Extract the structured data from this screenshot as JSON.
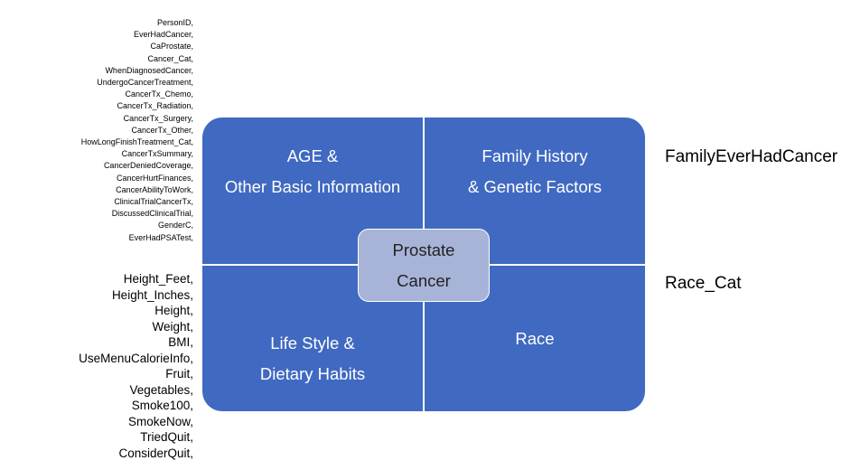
{
  "basic_variables": [
    "PersonID,",
    "EverHadCancer,",
    "CaProstate,",
    "Cancer_Cat,",
    "WhenDiagnosedCancer,",
    "UndergoCancerTreatment,",
    "CancerTx_Chemo,",
    "CancerTx_Radiation,",
    "CancerTx_Surgery,",
    "CancerTx_Other,",
    "HowLongFinishTreatment_Cat,",
    "CancerTxSummary,",
    "CancerDeniedCoverage,",
    "CancerHurtFinances,",
    "CancerAbilityToWork,",
    "ClinicalTrialCancerTx,",
    "DiscussedClinicalTrial,",
    "GenderC,",
    "EverHadPSATest,"
  ],
  "lifestyle_variables": [
    "Height_Feet,",
    "Height_Inches,",
    "Height,",
    "Weight,",
    "BMI,",
    "UseMenuCalorieInfo,",
    "Fruit,",
    "Vegetables,",
    "Smoke100,",
    "SmokeNow,",
    "TriedQuit,",
    "ConsiderQuit,"
  ],
  "family_variable": "FamilyEverHadCancer",
  "race_variable": "Race_Cat",
  "quadrants": {
    "age": {
      "line1": "AGE &",
      "line2": "Other Basic Information"
    },
    "family": {
      "line1": "Family History",
      "line2": "& Genetic Factors"
    },
    "lifestyle": {
      "line1": "Life Style &",
      "line2": "Dietary Habits"
    },
    "race": {
      "line1": "Race"
    }
  },
  "center": {
    "line1": "Prostate",
    "line2": "Cancer"
  },
  "colors": {
    "quadrant_fill": "#4069c1",
    "center_fill": "#a7b4d8",
    "divider": "#ffffff"
  }
}
